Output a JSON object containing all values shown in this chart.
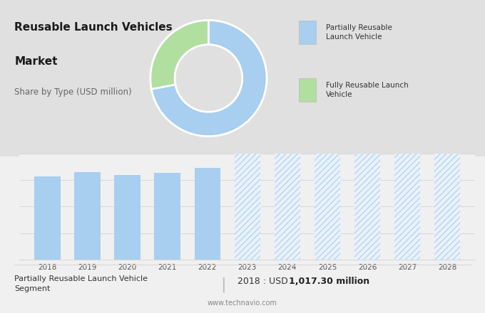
{
  "title_line1": "Reusable Launch Vehicles",
  "title_line2": "Market",
  "subtitle": "Share by Type (USD million)",
  "top_bg_color": "#e0e0e0",
  "bottom_bg_color": "#f0f0f0",
  "donut_colors": [
    "#a8cef0",
    "#b0dfa0"
  ],
  "donut_values": [
    72,
    28
  ],
  "legend_labels": [
    "Partially Reusable\nLaunch Vehicle",
    "Fully Reusable Launch\nVehicle"
  ],
  "bar_years_solid": [
    2018,
    2019,
    2020,
    2021,
    2022
  ],
  "bar_values_solid": [
    1017,
    1070,
    1040,
    1065,
    1120
  ],
  "bar_years_hatch": [
    2023,
    2024,
    2025,
    2026,
    2027,
    2028
  ],
  "bar_color_solid": "#a8cef0",
  "hatch_color": "#c0d8f0",
  "hatch_pattern": "////",
  "footer_left": "Partially Reusable Launch Vehicle\nSegment",
  "footer_value": "2018 : USD ",
  "footer_value_bold": "1,017.30 million",
  "footer_url": "www.technavio.com",
  "grid_color": "#d8d8d8",
  "bar_ylim": [
    0,
    1300
  ],
  "bar_yticks": [
    0,
    325,
    650,
    975,
    1300
  ]
}
